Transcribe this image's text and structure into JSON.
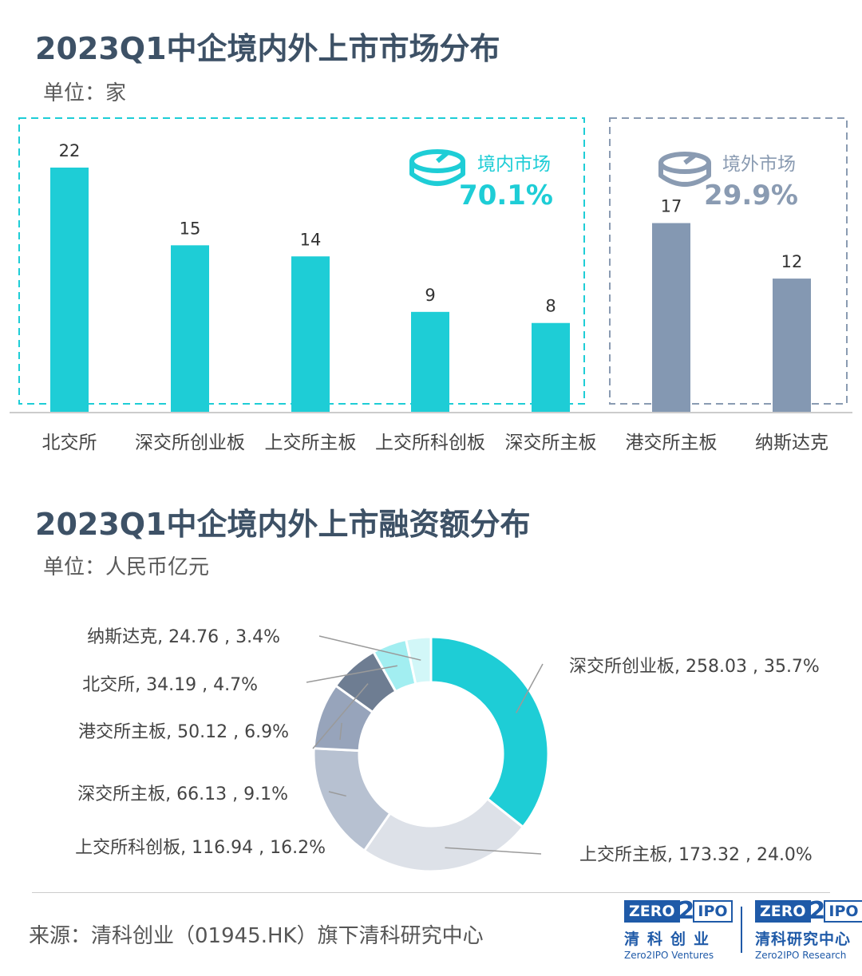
{
  "chart1": {
    "title": "2023Q1中企境内外上市市场分布",
    "unit": "单位：家",
    "domestic": {
      "label": "境内市场",
      "share": "70.1%"
    },
    "overseas": {
      "label": "境外市场",
      "share": "29.9%"
    }
  },
  "chart2": {
    "title": "2023Q1中企境内外上市融资额分布",
    "unit": "单位：人民币亿元"
  },
  "source": "来源：清科创业（01945.HK）旗下清科研究中心",
  "logos": {
    "left": {
      "zero": "ZERO",
      "two": "2",
      "ipo": "IPO",
      "cn": "清科创业",
      "en": "Zero2IPO Ventures"
    },
    "right": {
      "zero": "ZERO",
      "two": "2",
      "ipo": "IPO",
      "cn": "清科研究中心",
      "en": "Zero2IPO Research"
    }
  },
  "colors": {
    "teal": "#1ecdd6",
    "grey": "#8498b2",
    "title": "#3d5166"
  },
  "chart_data": [
    {
      "type": "bar",
      "title": "2023Q1中企境内外上市市场分布",
      "ylabel": "单位：家",
      "categories": [
        "北交所",
        "深交所创业板",
        "上交所主板",
        "上交所科创板",
        "深交所主板",
        "港交所主板",
        "纳斯达克"
      ],
      "values": [
        22,
        15,
        14,
        9,
        8,
        17,
        12
      ],
      "groups": [
        {
          "name": "境内市场",
          "share": "70.1%",
          "categories": [
            "北交所",
            "深交所创业板",
            "上交所主板",
            "上交所科创板",
            "深交所主板"
          ],
          "color": "#1ecdd6"
        },
        {
          "name": "境外市场",
          "share": "29.9%",
          "categories": [
            "港交所主板",
            "纳斯达克"
          ],
          "color": "#8498b2"
        }
      ],
      "ylim": [
        0,
        22
      ]
    },
    {
      "type": "pie",
      "title": "2023Q1中企境内外上市融资额分布",
      "unit": "单位：人民币亿元",
      "slices": [
        {
          "name": "深交所创业板",
          "value": 258.03,
          "percent": "35.7%",
          "label": "深交所创业板, 258.03 , 35.7%",
          "color": "#1ecdd6"
        },
        {
          "name": "上交所主板",
          "value": 173.32,
          "percent": "24.0%",
          "label": "上交所主板, 173.32 , 24.0%",
          "color": "#dde1e8"
        },
        {
          "name": "上交所科创板",
          "value": 116.94,
          "percent": "16.2%",
          "label": "上交所科创板, 116.94 , 16.2%",
          "color": "#b7c1d1"
        },
        {
          "name": "深交所主板",
          "value": 66.13,
          "percent": "9.1%",
          "label": "深交所主板, 66.13 , 9.1%",
          "color": "#97a4bb"
        },
        {
          "name": "港交所主板",
          "value": 50.12,
          "percent": "6.9%",
          "label": "港交所主板, 50.12 , 6.9%",
          "color": "#6e7d92"
        },
        {
          "name": "北交所",
          "value": 34.19,
          "percent": "4.7%",
          "label": "北交所, 34.19 , 4.7%",
          "color": "#a2eef1"
        },
        {
          "name": "纳斯达克",
          "value": 24.76,
          "percent": "3.4%",
          "label": "纳斯达克, 24.76 , 3.4%",
          "color": "#d2f7f8"
        }
      ]
    }
  ]
}
